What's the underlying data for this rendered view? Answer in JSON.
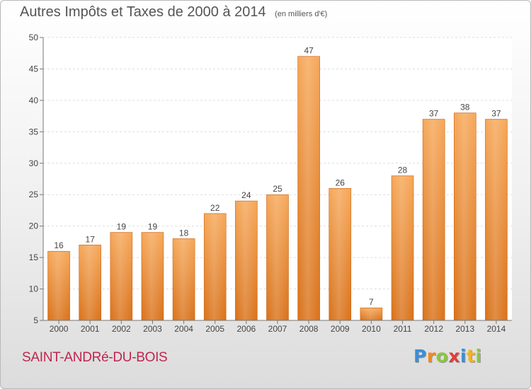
{
  "chart_data": {
    "type": "bar",
    "title": "Autres Impôts et Taxes de 2000 à 2014",
    "subtitle": "(en milliers d'€)",
    "categories": [
      "2000",
      "2001",
      "2002",
      "2003",
      "2004",
      "2005",
      "2006",
      "2007",
      "2008",
      "2009",
      "2010",
      "2011",
      "2012",
      "2013",
      "2014"
    ],
    "values": [
      16,
      17,
      19,
      19,
      18,
      22,
      24,
      25,
      47,
      26,
      7,
      28,
      37,
      38,
      37
    ],
    "ylim": [
      5,
      50
    ],
    "yticks": [
      5,
      10,
      15,
      20,
      25,
      30,
      35,
      40,
      45,
      50
    ],
    "grid": true,
    "bar_color": "#f0913a"
  },
  "footer": {
    "place": "SAINT-ANDRé-DU-BOIS",
    "logo_letters": [
      {
        "ch": "P",
        "color": "#3a8fd8"
      },
      {
        "ch": "r",
        "color": "#f08a24"
      },
      {
        "ch": "o",
        "color": "#8cc63f"
      },
      {
        "ch": "x",
        "color": "#e13c3c"
      },
      {
        "ch": "i",
        "color": "#3a8fd8"
      },
      {
        "ch": "t",
        "color": "#f5b21c"
      },
      {
        "ch": "i",
        "color": "#8cc63f"
      }
    ]
  }
}
